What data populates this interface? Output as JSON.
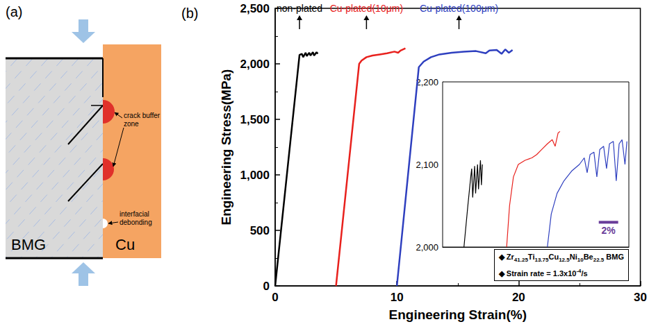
{
  "diagram": {
    "label": "(a)",
    "materials": [
      "BMG",
      "Cu"
    ],
    "annotations": [
      "crack buffer zone",
      "interfacial debonding"
    ]
  },
  "chart_data": {
    "type": "line",
    "panel_label": "(b)",
    "x_label": "Engineering Strain(%)",
    "y_label": "Engineering Stress(MPa)",
    "xlim": [
      0,
      30
    ],
    "xticks": [
      0,
      10,
      20,
      30
    ],
    "ylim": [
      0,
      2500
    ],
    "yticks": [
      0,
      500,
      1000,
      1500,
      2000,
      2500
    ],
    "grid": false,
    "series": [
      {
        "name": "non-plated",
        "color": "#000000",
        "x": [
          0,
          2.0,
          2.2,
          2.3,
          2.5,
          2.6,
          2.8,
          2.9,
          3.1,
          3.2,
          3.4,
          3.5
        ],
        "values": [
          0,
          2080,
          2090,
          2060,
          2100,
          2070,
          2100,
          2075,
          2105,
          2075,
          2105,
          2090
        ],
        "annotation": {
          "x": 2.0,
          "y": 2500
        }
      },
      {
        "name": "Cu-plated(10μm)",
        "color": "#e8211d",
        "x": [
          5,
          6.9,
          7.1,
          7.5,
          8.0,
          8.6,
          9.2,
          9.8,
          10.1,
          10.3,
          10.7
        ],
        "values": [
          0,
          2000,
          2030,
          2060,
          2075,
          2085,
          2095,
          2110,
          2100,
          2120,
          2140
        ],
        "annotation": {
          "x": 7.5,
          "y": 2500
        }
      },
      {
        "name": "Cu-plated(100μm)",
        "color": "#2e3fbf",
        "x": [
          10,
          11.8,
          12.2,
          12.8,
          13.5,
          14.5,
          15.5,
          16.5,
          17.3,
          17.6,
          18.2,
          18.6,
          18.9,
          19.2,
          19.5
        ],
        "values": [
          0,
          1970,
          2020,
          2060,
          2085,
          2100,
          2110,
          2115,
          2095,
          2120,
          2125,
          2090,
          2130,
          2100,
          2125
        ],
        "annotation": {
          "x": 15.1,
          "y": 2500
        }
      }
    ],
    "inset": {
      "type": "line",
      "xlim": [
        0,
        19.2
      ],
      "ylim": [
        2000,
        2200
      ],
      "yticks": [
        2000,
        2100,
        2200
      ],
      "tick_labels": "y",
      "series": [
        {
          "color": "#000000",
          "x": [
            2.2,
            2.6,
            2.9,
            3.0,
            3.1,
            3.3,
            3.4,
            3.6,
            3.7,
            3.9,
            4.0,
            4.1
          ],
          "values": [
            2000,
            2050,
            2085,
            2095,
            2060,
            2098,
            2065,
            2100,
            2070,
            2105,
            2075,
            2100
          ]
        },
        {
          "color": "#e8211d",
          "x": [
            6.6,
            6.9,
            7.3,
            7.8,
            8.5,
            9.2,
            9.7,
            10.2,
            10.8,
            11.3,
            11.6,
            11.9,
            12.1
          ],
          "values": [
            2000,
            2050,
            2085,
            2100,
            2105,
            2108,
            2112,
            2118,
            2125,
            2130,
            2122,
            2138,
            2140
          ]
        },
        {
          "color": "#2e3fbf",
          "x": [
            10.8,
            11.2,
            11.8,
            12.5,
            13.3,
            14.1,
            14.6,
            14.9,
            15.2,
            15.6,
            15.9,
            16.2,
            16.6,
            16.9,
            17.2,
            17.6,
            17.9,
            18.2,
            18.5,
            18.8,
            19.0
          ],
          "values": [
            2000,
            2040,
            2065,
            2080,
            2092,
            2100,
            2108,
            2090,
            2112,
            2115,
            2085,
            2118,
            2122,
            2095,
            2125,
            2128,
            2080,
            2125,
            2130,
            2100,
            2128
          ]
        }
      ],
      "scale_bar": {
        "label": "2%",
        "length": 2,
        "x": 16.1,
        "y": 2030,
        "color": "#6a3d9a"
      }
    },
    "info_box": {
      "bullet": "◆",
      "alloy": [
        [
          "Zr",
          "41.25"
        ],
        [
          "Ti",
          "13.75"
        ],
        [
          "Cu",
          "12.5"
        ],
        [
          "Ni",
          "10"
        ],
        [
          "Be",
          "22.5"
        ]
      ],
      "alloy_suffix": "BMG",
      "rate_text": "Strain rate = 1.3x10",
      "rate_exponent": "-4",
      "rate_unit": "/s"
    }
  }
}
